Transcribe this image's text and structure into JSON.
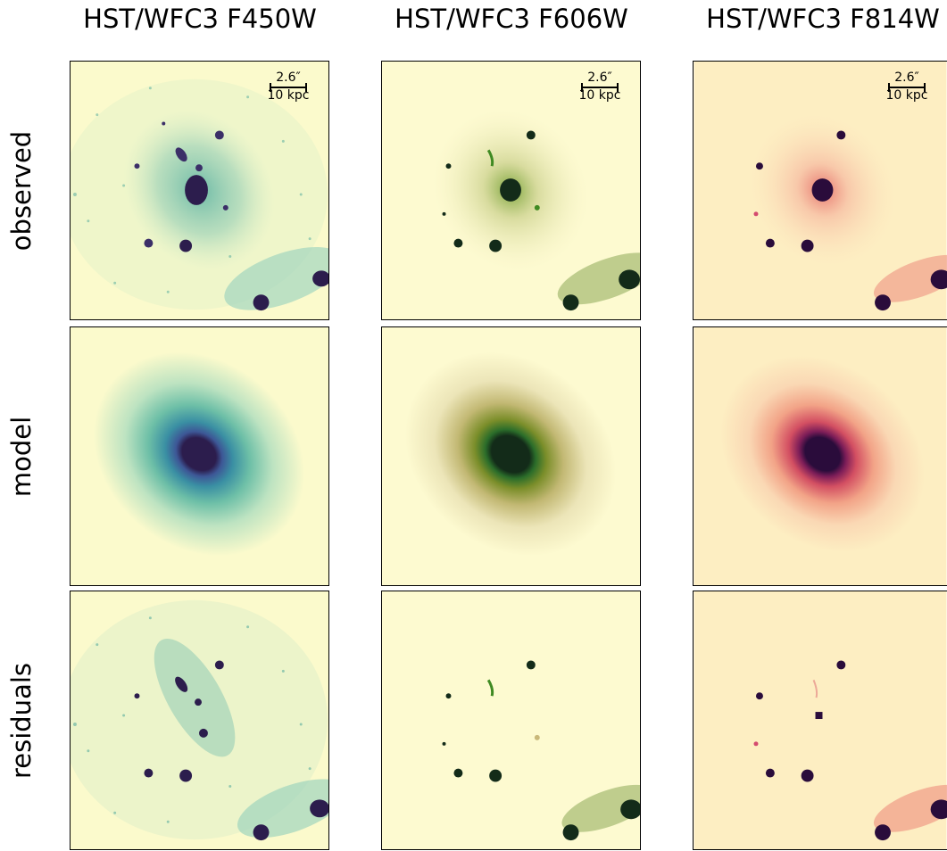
{
  "columns": [
    {
      "title": "HST/WFC3 F450W",
      "colormap": "mako_r",
      "bg": "#fbfacc",
      "mid": "#5fb6a3",
      "dark": "#2c1d4d"
    },
    {
      "title": "HST/WFC3 F606W",
      "colormap": "speed",
      "bg": "#fdfad0",
      "mid": "#3f8a22",
      "dark": "#132b19"
    },
    {
      "title": "HST/WFC3 F814W",
      "colormap": "magma_r",
      "bg": "#fdeec2",
      "mid": "#e9736b",
      "dark": "#2a0c3b"
    }
  ],
  "rows": [
    {
      "label": "observed"
    },
    {
      "label": "model"
    },
    {
      "label": "residuals"
    }
  ],
  "scalebar": {
    "angle": "2.6″",
    "distance": "10 kpc"
  }
}
